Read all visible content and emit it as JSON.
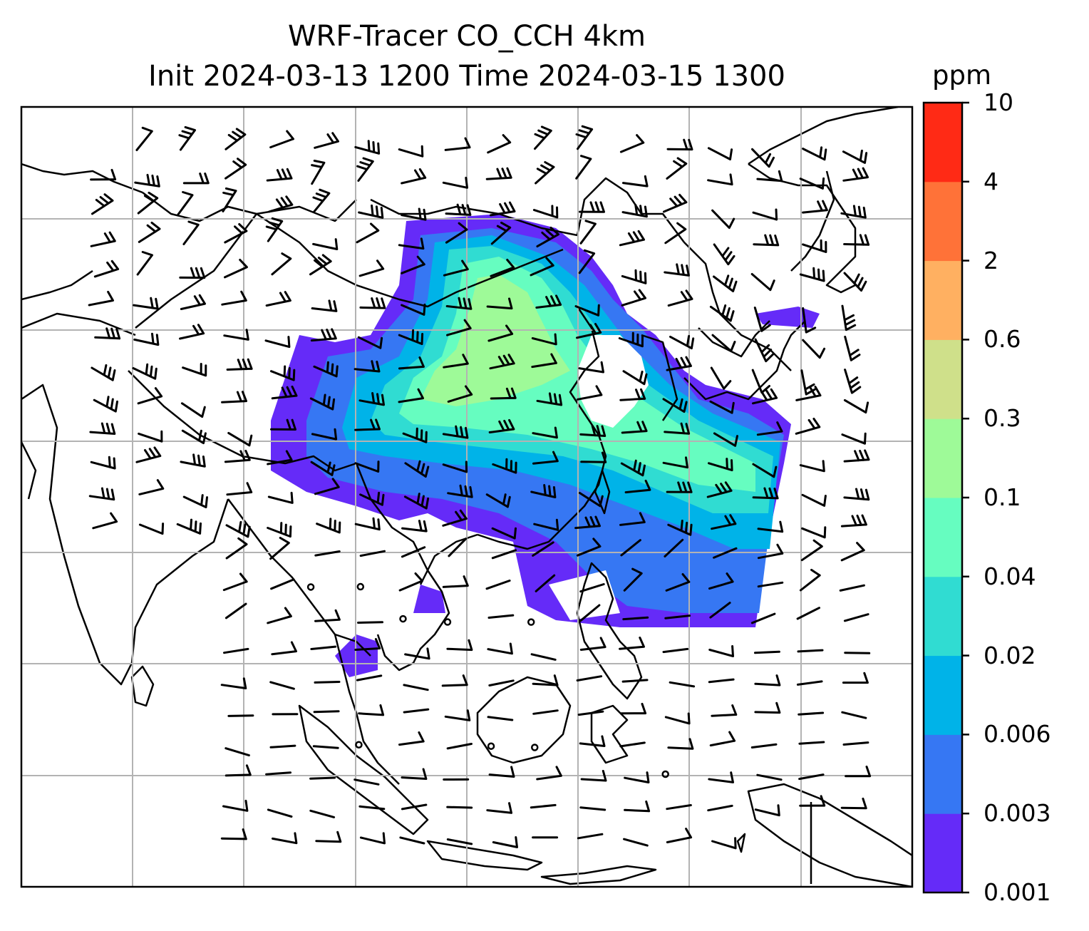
{
  "title_line1": "WRF-Tracer CO_CCH 4km",
  "title_line2": "Init 2024-03-13 1200 Time 2024-03-15 1300",
  "colorbar": {
    "unit": "ppm",
    "levels": [
      "0.001",
      "0.003",
      "0.006",
      "0.02",
      "0.04",
      "0.1",
      "0.3",
      "0.6",
      "2",
      "4",
      "10"
    ],
    "colors": [
      "#652bf8",
      "#3677f3",
      "#00b3e8",
      "#30dcd2",
      "#66fdc0",
      "#9efa98",
      "#cfe08a",
      "#ffb061",
      "#ff7238",
      "#ff2a15"
    ]
  },
  "map": {
    "projection": "lat-lon",
    "gridlines": "on",
    "coastlines": "on",
    "overlay": "wind barbs"
  }
}
